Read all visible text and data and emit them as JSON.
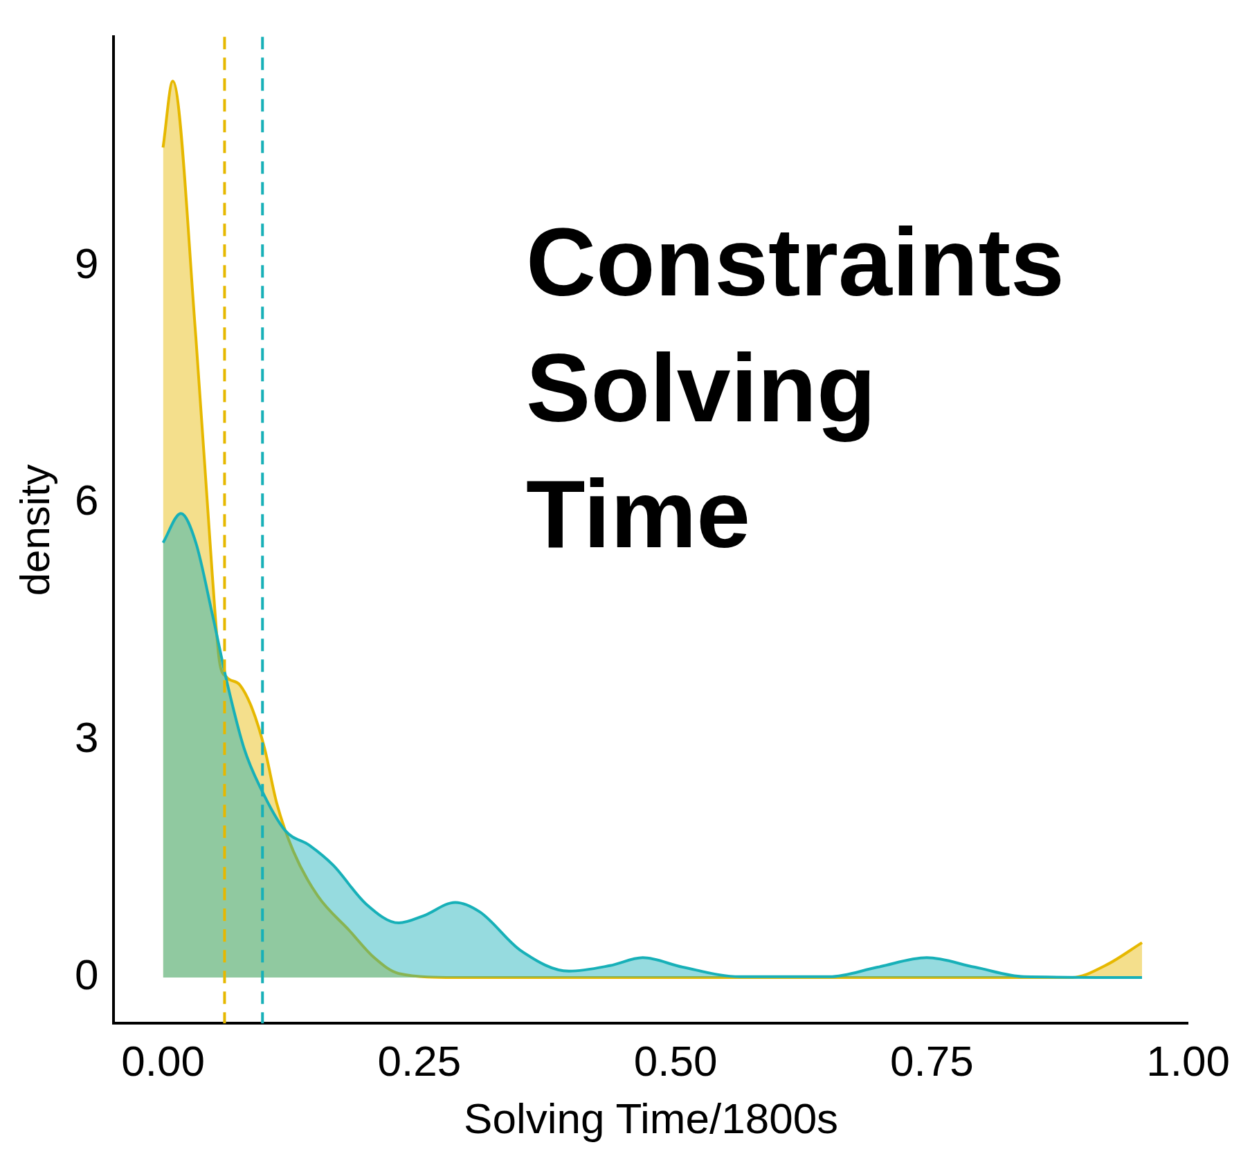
{
  "chart_data": {
    "type": "area",
    "xlabel": "Solving Time/1800s",
    "ylabel": "density",
    "xlim": [
      -0.048,
      1.0
    ],
    "ylim": [
      -0.58,
      11.9
    ],
    "xticks": [
      {
        "value": 0,
        "label": "0.00"
      },
      {
        "value": 0.25,
        "label": "0.25"
      },
      {
        "value": 0.5,
        "label": "0.50"
      },
      {
        "value": 0.75,
        "label": "0.75"
      },
      {
        "value": 1,
        "label": "1.00"
      }
    ],
    "yticks": [
      0,
      3,
      6,
      9
    ],
    "grid": false,
    "legend": false,
    "series": [
      {
        "color": "#17b0b8",
        "x": [
          0,
          0.0174,
          0.032,
          0.048,
          0.063,
          0.079,
          0.095,
          0.119,
          0.143,
          0.166,
          0.198,
          0.23,
          0.254,
          0.285,
          0.309,
          0.349,
          0.396,
          0.436,
          0.468,
          0.507,
          0.563,
          0.65,
          0.697,
          0.745,
          0.792,
          0.84,
          0.955
        ],
        "values": [
          5.5,
          5.87,
          5.5,
          4.6,
          3.7,
          2.9,
          2.4,
          1.86,
          1.67,
          1.42,
          0.93,
          0.69,
          0.78,
          0.95,
          0.83,
          0.34,
          0.08,
          0.15,
          0.25,
          0.13,
          0.01,
          0.01,
          0.13,
          0.25,
          0.13,
          0.01,
          0
        ]
      },
      {
        "color": "#e6b800",
        "x": [
          0,
          0.0095,
          0.032,
          0.048,
          0.055,
          0.062,
          0.075,
          0.087,
          0.099,
          0.111,
          0.127,
          0.151,
          0.182,
          0.206,
          0.23,
          0.285,
          0.887,
          0.919,
          0.955
        ],
        "values": [
          10.5,
          11.34,
          8.1,
          5.1,
          4.0,
          3.8,
          3.7,
          3.4,
          2.9,
          2.2,
          1.6,
          1.03,
          0.59,
          0.25,
          0.05,
          0,
          0,
          0.15,
          0.44
        ]
      }
    ],
    "ref_lines": [
      {
        "axis": "x",
        "value": 0.06,
        "color": "#e6b800",
        "line_style": "dashed"
      },
      {
        "axis": "x",
        "value": 0.097,
        "color": "#17b0b8",
        "line_style": "dashed"
      }
    ],
    "annotations": [
      "Constraints Solving Time"
    ]
  }
}
